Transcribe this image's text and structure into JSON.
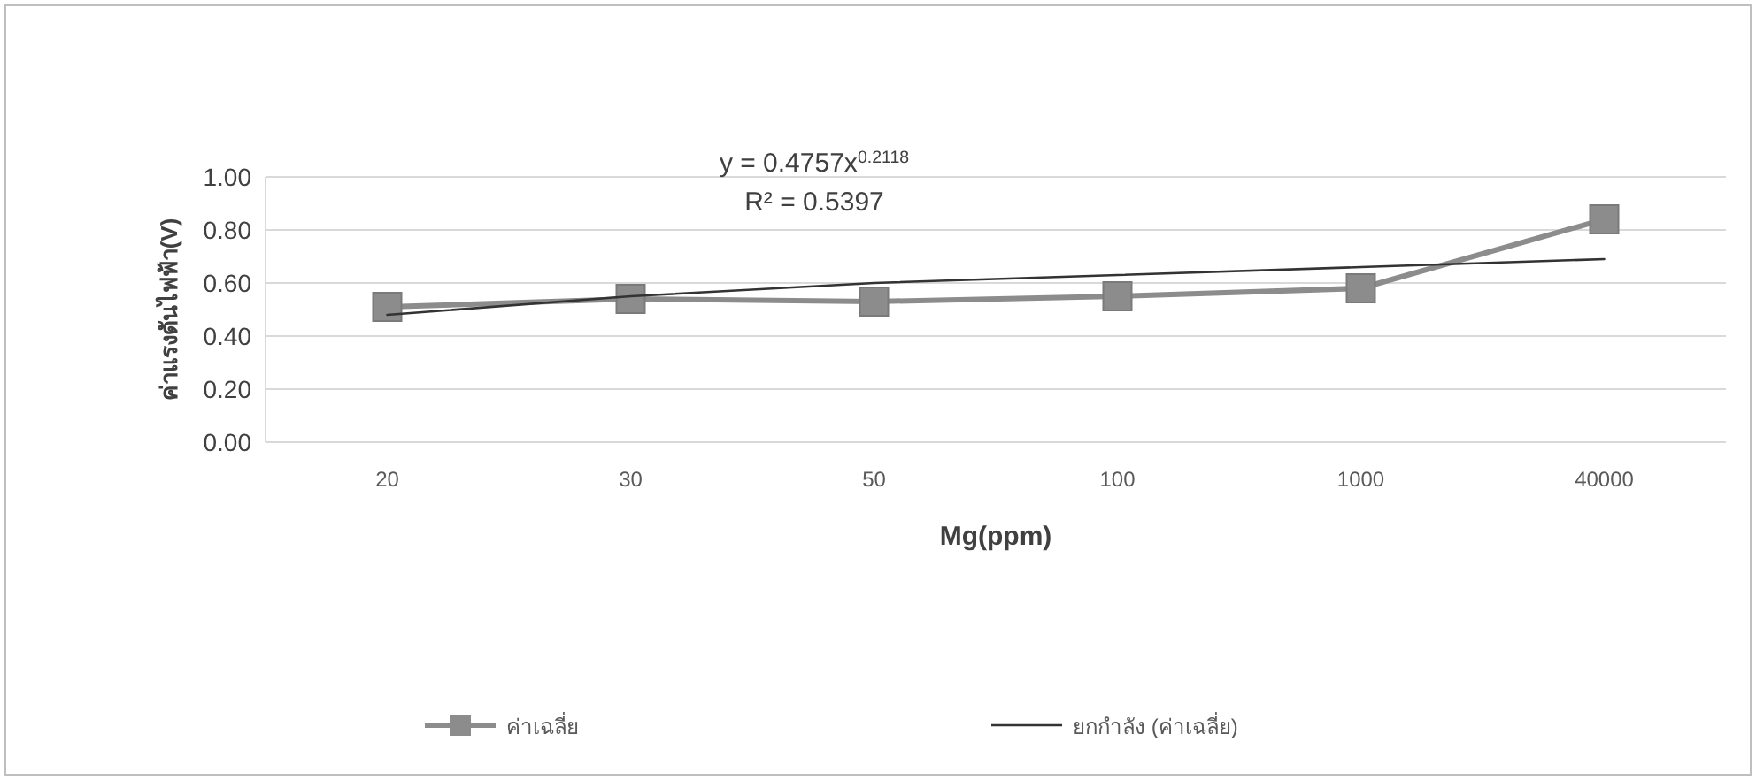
{
  "chart_data": {
    "type": "line",
    "xlabel": "Mg(ppm)",
    "ylabel": "ค่าแรงดันไฟฟ้า(V)",
    "categories": [
      "20",
      "30",
      "50",
      "100",
      "1000",
      "40000"
    ],
    "series": [
      {
        "name": "ค่าเฉลี่ย",
        "color": "#8c8c8c",
        "marker": "square",
        "values": [
          0.51,
          0.54,
          0.53,
          0.55,
          0.58,
          0.84
        ]
      },
      {
        "name": "ยกกำลัง (ค่าเฉลี่ย)",
        "color": "#333333",
        "marker": "none",
        "values": [
          0.48,
          0.55,
          0.6,
          0.63,
          0.66,
          0.69
        ]
      }
    ],
    "ylim": [
      0,
      1
    ],
    "yticks": [
      {
        "value": 0,
        "label": "0.00"
      },
      {
        "value": 0.2,
        "label": "0.20"
      },
      {
        "value": 0.4,
        "label": "0.40"
      },
      {
        "value": 0.6,
        "label": "0.60"
      },
      {
        "value": 0.8,
        "label": "0.80"
      },
      {
        "value": 1,
        "label": "1.00"
      }
    ],
    "annotations": [
      "y = 0.4757x$^{0.2118}$",
      "R² = 0.5397"
    ],
    "grid": "y",
    "legend": "bottom",
    "line_style": "solid"
  }
}
